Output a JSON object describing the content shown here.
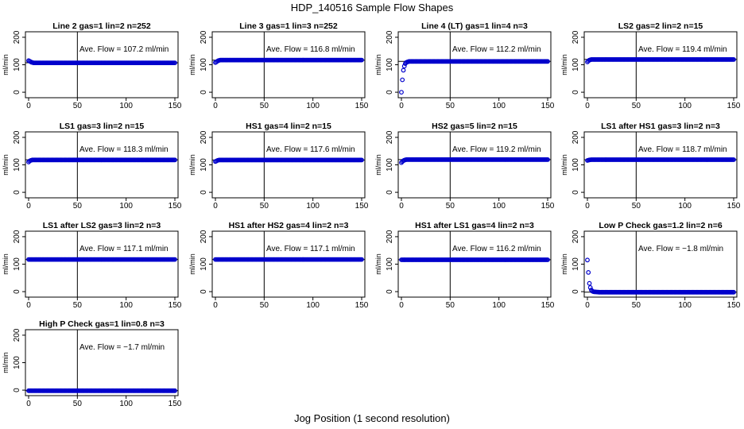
{
  "figure": {
    "title": "HDP_140516  Sample Flow Shapes",
    "xlabel": "Jog Position (1 second resolution)",
    "ylabel": "ml/min",
    "annotation_prefix": "Ave. Flow = ",
    "annotation_unit": "ml/min",
    "colors": {
      "points": "#0000cc",
      "axes": "#000000",
      "background": "#ffffff"
    }
  },
  "chart_data": [
    {
      "type": "scatter",
      "title": "Line 2 gas=1 lin=2 n=252",
      "ave_flow": "107.2",
      "xlim": [
        0,
        150
      ],
      "ylim": [
        0,
        200
      ],
      "xticks": [
        0,
        50,
        100,
        150
      ],
      "yticks": [
        0,
        100,
        200
      ],
      "hline": 107.2,
      "vline": 50,
      "series": [
        {
          "x": [
            0,
            1,
            2,
            3,
            4,
            5,
            8,
            12,
            20,
            40,
            60,
            80,
            100,
            120,
            140,
            150
          ],
          "y": [
            115,
            113,
            111,
            109,
            108,
            107,
            107,
            107,
            107,
            107,
            107,
            107,
            107,
            107,
            107,
            107
          ]
        }
      ]
    },
    {
      "type": "scatter",
      "title": "Line 3 gas=1 lin=3 n=252",
      "ave_flow": "116.8",
      "xlim": [
        0,
        150
      ],
      "ylim": [
        0,
        200
      ],
      "xticks": [
        0,
        50,
        100,
        150
      ],
      "yticks": [
        0,
        100,
        200
      ],
      "hline": 116.8,
      "vline": 50,
      "series": [
        {
          "x": [
            0,
            1,
            2,
            3,
            4,
            5,
            8,
            12,
            20,
            40,
            60,
            80,
            100,
            120,
            140,
            150
          ],
          "y": [
            108,
            110,
            113,
            115,
            116,
            117,
            117,
            117,
            117,
            117,
            117,
            117,
            117,
            117,
            117,
            117
          ]
        }
      ]
    },
    {
      "type": "scatter",
      "title": "Line 4 (LT) gas=1 lin=4 n=3",
      "ave_flow": "112.2",
      "xlim": [
        0,
        150
      ],
      "ylim": [
        0,
        200
      ],
      "xticks": [
        0,
        50,
        100,
        150
      ],
      "yticks": [
        0,
        100,
        200
      ],
      "hline": 112.2,
      "vline": 50,
      "series": [
        {
          "x": [
            0,
            1,
            2,
            3,
            4,
            5,
            6,
            8,
            12,
            20,
            40,
            60,
            80,
            100,
            120,
            140,
            150
          ],
          "y": [
            0,
            45,
            80,
            95,
            104,
            108,
            110,
            112,
            112,
            112,
            112,
            112,
            112,
            112,
            112,
            112,
            112
          ]
        }
      ]
    },
    {
      "type": "scatter",
      "title": "LS2 gas=2 lin=2 n=15",
      "ave_flow": "119.4",
      "xlim": [
        0,
        150
      ],
      "ylim": [
        0,
        200
      ],
      "xticks": [
        0,
        50,
        100,
        150
      ],
      "yticks": [
        0,
        100,
        200
      ],
      "hline": 119.4,
      "vline": 50,
      "series": [
        {
          "x": [
            0,
            1,
            2,
            3,
            4,
            5,
            8,
            12,
            20,
            40,
            60,
            80,
            100,
            120,
            140,
            150
          ],
          "y": [
            110,
            114,
            117,
            118,
            119,
            119,
            119,
            119,
            119,
            119,
            119,
            119,
            119,
            119,
            119,
            119
          ]
        }
      ]
    },
    {
      "type": "scatter",
      "title": "LS1 gas=3 lin=2 n=15",
      "ave_flow": "118.3",
      "xlim": [
        0,
        150
      ],
      "ylim": [
        0,
        200
      ],
      "xticks": [
        0,
        50,
        100,
        150
      ],
      "yticks": [
        0,
        100,
        200
      ],
      "hline": 118.3,
      "vline": 50,
      "series": [
        {
          "x": [
            0,
            1,
            2,
            3,
            4,
            5,
            8,
            12,
            20,
            40,
            60,
            80,
            100,
            120,
            140,
            150
          ],
          "y": [
            110,
            114,
            116,
            117,
            118,
            118,
            118,
            118,
            118,
            118,
            118,
            118,
            118,
            118,
            118,
            118
          ]
        }
      ]
    },
    {
      "type": "scatter",
      "title": "HS1 gas=4 lin=2 n=15",
      "ave_flow": "117.6",
      "xlim": [
        0,
        150
      ],
      "ylim": [
        0,
        200
      ],
      "xticks": [
        0,
        50,
        100,
        150
      ],
      "yticks": [
        0,
        100,
        200
      ],
      "hline": 117.6,
      "vline": 50,
      "series": [
        {
          "x": [
            0,
            1,
            2,
            3,
            4,
            5,
            8,
            12,
            20,
            40,
            60,
            80,
            100,
            120,
            140,
            150
          ],
          "y": [
            112,
            114,
            116,
            117,
            117.6,
            117.6,
            117.6,
            117.6,
            117.6,
            117.6,
            117.6,
            117.6,
            117.6,
            117.6,
            117.6,
            117.6
          ]
        }
      ]
    },
    {
      "type": "scatter",
      "title": "HS2 gas=5 lin=2 n=15",
      "ave_flow": "119.2",
      "xlim": [
        0,
        150
      ],
      "ylim": [
        0,
        200
      ],
      "xticks": [
        0,
        50,
        100,
        150
      ],
      "yticks": [
        0,
        100,
        200
      ],
      "hline": 119.2,
      "vline": 50,
      "series": [
        {
          "x": [
            0,
            1,
            2,
            3,
            4,
            5,
            8,
            12,
            20,
            40,
            60,
            80,
            100,
            120,
            140,
            150
          ],
          "y": [
            108,
            112,
            115,
            117,
            118,
            119,
            119,
            119,
            119,
            119,
            119,
            119,
            119,
            119,
            119,
            119
          ]
        }
      ]
    },
    {
      "type": "scatter",
      "title": "LS1 after HS1 gas=3 lin=2 n=3",
      "ave_flow": "118.7",
      "xlim": [
        0,
        150
      ],
      "ylim": [
        0,
        200
      ],
      "xticks": [
        0,
        50,
        100,
        150
      ],
      "yticks": [
        0,
        100,
        200
      ],
      "hline": 118.7,
      "vline": 50,
      "series": [
        {
          "x": [
            0,
            1,
            2,
            3,
            4,
            5,
            8,
            12,
            20,
            40,
            60,
            80,
            100,
            120,
            140,
            150
          ],
          "y": [
            116,
            117,
            118,
            118.5,
            118.7,
            118.7,
            118.7,
            118.7,
            118.7,
            118.7,
            118.7,
            118.7,
            118.7,
            118.7,
            118.7,
            118.7
          ]
        }
      ]
    },
    {
      "type": "scatter",
      "title": "LS1 after LS2 gas=3 lin=2 n=3",
      "ave_flow": "117.1",
      "xlim": [
        0,
        150
      ],
      "ylim": [
        0,
        200
      ],
      "xticks": [
        0,
        50,
        100,
        150
      ],
      "yticks": [
        0,
        100,
        200
      ],
      "hline": 117.1,
      "vline": 50,
      "series": [
        {
          "x": [
            0,
            1,
            2,
            3,
            4,
            5,
            8,
            12,
            20,
            40,
            60,
            80,
            100,
            120,
            140,
            150
          ],
          "y": [
            117,
            117,
            117,
            117,
            117,
            117,
            117,
            117,
            117,
            117,
            117,
            117,
            117,
            117,
            117,
            117
          ]
        }
      ]
    },
    {
      "type": "scatter",
      "title": "HS1 after HS2 gas=4 lin=2 n=3",
      "ave_flow": "117.1",
      "xlim": [
        0,
        150
      ],
      "ylim": [
        0,
        200
      ],
      "xticks": [
        0,
        50,
        100,
        150
      ],
      "yticks": [
        0,
        100,
        200
      ],
      "hline": 117.1,
      "vline": 50,
      "series": [
        {
          "x": [
            0,
            1,
            2,
            3,
            4,
            5,
            8,
            12,
            20,
            40,
            60,
            80,
            100,
            120,
            140,
            150
          ],
          "y": [
            117,
            117,
            117,
            117,
            117,
            117,
            117,
            117,
            117,
            117,
            117,
            117,
            117,
            117,
            117,
            117
          ]
        }
      ]
    },
    {
      "type": "scatter",
      "title": "HS1 after LS1 gas=4 lin=2 n=3",
      "ave_flow": "116.2",
      "xlim": [
        0,
        150
      ],
      "ylim": [
        0,
        200
      ],
      "xticks": [
        0,
        50,
        100,
        150
      ],
      "yticks": [
        0,
        100,
        200
      ],
      "hline": 116.2,
      "vline": 50,
      "series": [
        {
          "x": [
            0,
            1,
            2,
            3,
            4,
            5,
            8,
            12,
            20,
            40,
            60,
            80,
            100,
            120,
            140,
            150
          ],
          "y": [
            116,
            116,
            116,
            116,
            116,
            116,
            116,
            116,
            116,
            116,
            116,
            116,
            116,
            116,
            116,
            116
          ]
        }
      ]
    },
    {
      "type": "scatter",
      "title": "Low P Check gas=1.2 lin=2 n=6",
      "ave_flow": "−1.8",
      "xlim": [
        0,
        150
      ],
      "ylim": [
        0,
        200
      ],
      "xticks": [
        0,
        50,
        100,
        150
      ],
      "yticks": [
        0,
        100,
        200
      ],
      "hline": -1.8,
      "vline": 50,
      "series": [
        {
          "x": [
            0,
            1,
            2,
            3,
            4,
            5,
            6,
            8,
            12,
            20,
            40,
            60,
            80,
            100,
            120,
            140,
            150
          ],
          "y": [
            115,
            70,
            30,
            15,
            6,
            2,
            0,
            -1,
            -2,
            -2,
            -2,
            -2,
            -2,
            -2,
            -2,
            -2,
            -2
          ]
        }
      ]
    },
    {
      "type": "scatter",
      "title": "High P Check gas=1 lin=0.8 n=3",
      "ave_flow": "−1.7",
      "xlim": [
        0,
        150
      ],
      "ylim": [
        0,
        200
      ],
      "xticks": [
        0,
        50,
        100,
        150
      ],
      "yticks": [
        0,
        100,
        200
      ],
      "hline": -1.7,
      "vline": 50,
      "series": [
        {
          "x": [
            0,
            1,
            2,
            3,
            4,
            5,
            8,
            12,
            20,
            40,
            60,
            80,
            100,
            120,
            140,
            150
          ],
          "y": [
            -2,
            -2,
            -2,
            -2,
            -2,
            -2,
            -2,
            -2,
            -2,
            -2,
            -2,
            -2,
            -2,
            -2,
            -2,
            -2
          ]
        }
      ]
    }
  ]
}
